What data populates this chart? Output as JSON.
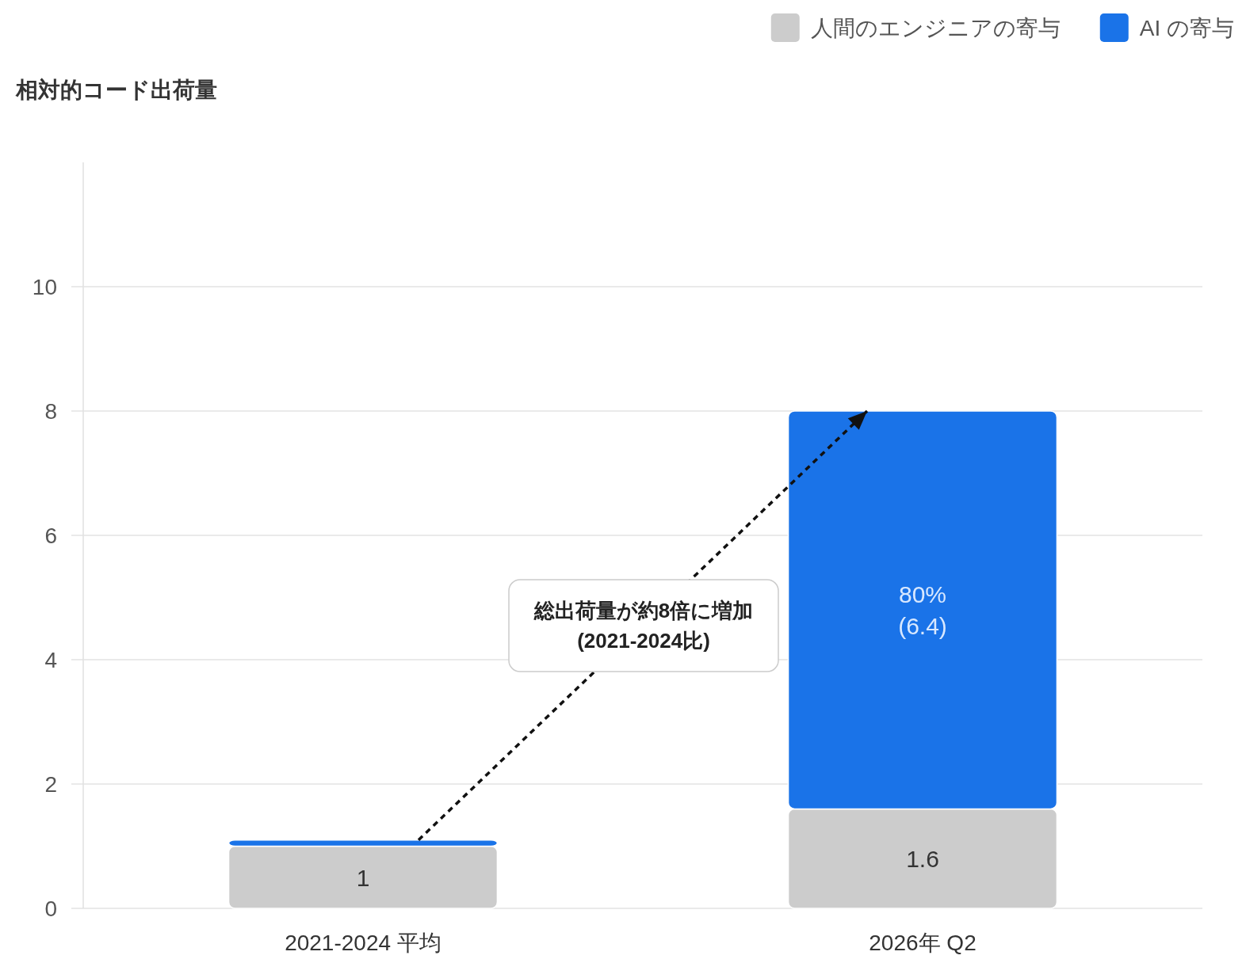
{
  "chart_data": {
    "type": "bar",
    "stacked": true,
    "ylabel": "相対的コード出荷量",
    "categories": [
      "2021-2024 平均",
      "2026年 Q2"
    ],
    "series": [
      {
        "name": "人間のエンジニアの寄与",
        "color": "#cccccc",
        "values": [
          1,
          1.6
        ],
        "value_labels": [
          "1",
          "1.6"
        ]
      },
      {
        "name": "AI の寄与",
        "color": "#1a73e8",
        "values": [
          0.1,
          6.4
        ],
        "value_labels": [
          null,
          "80%\n(6.4)"
        ]
      }
    ],
    "ylim": [
      0,
      12
    ],
    "yticks": [
      0,
      2,
      4,
      6,
      8,
      10
    ],
    "grid": "y",
    "legend": "top right",
    "annotations": [
      "総出荷量が約8倍に増加\n(2021-2024比)"
    ]
  }
}
